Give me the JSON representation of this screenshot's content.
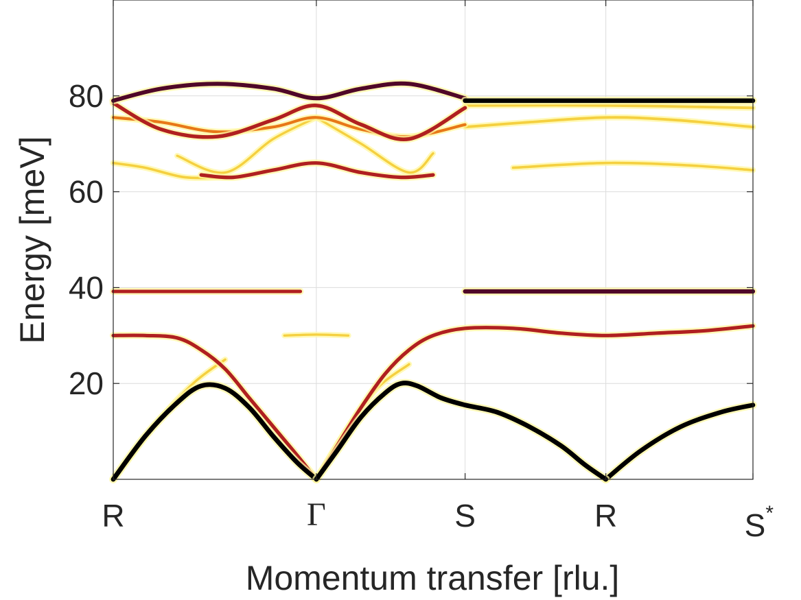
{
  "chart_data": {
    "type": "line",
    "xlabel": "Momentum transfer [rlu.]",
    "ylabel": "Energy [meV]",
    "xlim": [
      0,
      4
    ],
    "ylim": [
      0,
      100
    ],
    "x_ticks": [
      {
        "value": 0,
        "label": "R"
      },
      {
        "value": 1.27,
        "label": "Γ"
      },
      {
        "value": 2.2,
        "label": "S"
      },
      {
        "value": 3.08,
        "label": "R"
      },
      {
        "value": 4,
        "label": "S*"
      }
    ],
    "y_ticks": [
      20,
      40,
      60,
      80
    ],
    "grid": true,
    "colormap": [
      "#ffffb0",
      "#f5d040",
      "#e87818",
      "#b02020",
      "#500828",
      "#000000"
    ],
    "series": [
      {
        "id": "acoustic-1",
        "intensity": 0.95,
        "x": [
          0,
          0.2,
          0.4,
          0.55,
          0.7,
          0.85,
          1.0,
          1.15,
          1.27
        ],
        "y": [
          0,
          9,
          16,
          19.5,
          19,
          15,
          9,
          3.5,
          0
        ]
      },
      {
        "id": "acoustic-2",
        "intensity": 0.95,
        "x": [
          1.27,
          1.4,
          1.55,
          1.7,
          1.8,
          1.9,
          2.05,
          2.2,
          2.4,
          2.6,
          2.8,
          2.95,
          3.08
        ],
        "y": [
          0,
          6,
          13,
          18,
          20,
          19.5,
          17,
          15.5,
          14,
          11,
          7,
          3,
          0
        ]
      },
      {
        "id": "acoustic-3",
        "intensity": 0.9,
        "x": [
          3.08,
          3.3,
          3.55,
          3.8,
          4.0
        ],
        "y": [
          0,
          6,
          11,
          14,
          15.5
        ]
      },
      {
        "id": "optical-30",
        "intensity": 0.55,
        "x": [
          0,
          0.2,
          0.4,
          0.55,
          0.7,
          0.85,
          1.0,
          1.15,
          1.27
        ],
        "y": [
          30,
          30,
          29.5,
          27,
          23,
          17,
          11,
          5,
          0
        ]
      },
      {
        "id": "optical-30b",
        "intensity": 0.55,
        "x": [
          1.27,
          1.4,
          1.55,
          1.7,
          1.85,
          2.0,
          2.2,
          2.5,
          2.8,
          3.08,
          3.4,
          3.7,
          4.0
        ],
        "y": [
          0,
          7,
          15,
          22,
          27,
          30,
          31.5,
          31.5,
          30.5,
          30,
          30.5,
          31,
          32
        ]
      },
      {
        "id": "ghost-a",
        "intensity": 0.12,
        "x": [
          0,
          0.25,
          0.5,
          0.7
        ],
        "y": [
          0,
          11,
          20,
          25
        ]
      },
      {
        "id": "ghost-b",
        "intensity": 0.12,
        "x": [
          1.27,
          1.45,
          1.65,
          1.85
        ],
        "y": [
          0,
          10,
          19,
          24
        ]
      },
      {
        "id": "flat-39-left",
        "intensity": 0.5,
        "x": [
          0,
          0.4,
          0.8,
          1.17
        ],
        "y": [
          39.2,
          39.2,
          39.2,
          39.2
        ]
      },
      {
        "id": "flat-39-right",
        "intensity": 0.8,
        "x": [
          2.2,
          2.6,
          3.08,
          3.5,
          4.0
        ],
        "y": [
          39.2,
          39.2,
          39.2,
          39.2,
          39.2
        ]
      },
      {
        "id": "gamma-30",
        "intensity": 0.1,
        "x": [
          1.07,
          1.27,
          1.47
        ],
        "y": [
          30,
          30.2,
          30
        ]
      },
      {
        "id": "top-82",
        "intensity": 0.75,
        "x": [
          0,
          0.3,
          0.65,
          1.0,
          1.27,
          1.55,
          1.85,
          2.2
        ],
        "y": [
          79,
          81.5,
          82.5,
          81.5,
          79.5,
          81.5,
          82.5,
          79.5
        ]
      },
      {
        "id": "top-78",
        "intensity": 0.6,
        "x": [
          0,
          0.3,
          0.65,
          1.0,
          1.27,
          1.55,
          1.85,
          2.2
        ],
        "y": [
          78.5,
          73,
          71.5,
          75,
          78,
          74,
          71,
          77.5
        ]
      },
      {
        "id": "top-75",
        "intensity": 0.3,
        "x": [
          0,
          0.3,
          0.65,
          1.0,
          1.27,
          1.55,
          1.85,
          2.2
        ],
        "y": [
          75.5,
          74.5,
          72.5,
          73.5,
          75.5,
          73,
          71.5,
          74
        ]
      },
      {
        "id": "flat-79-right",
        "intensity": 0.9,
        "x": [
          2.2,
          3.08,
          4.0
        ],
        "y": [
          79,
          79,
          79
        ]
      },
      {
        "id": "flat-78-right",
        "intensity": 0.2,
        "x": [
          2.2,
          3.08,
          4.0
        ],
        "y": [
          78,
          78,
          77.5
        ]
      },
      {
        "id": "band-74-right",
        "intensity": 0.2,
        "x": [
          2.2,
          2.6,
          3.08,
          3.5,
          4.0
        ],
        "y": [
          73.5,
          74.5,
          75.5,
          75,
          73.5
        ]
      },
      {
        "id": "band-66",
        "intensity": 0.55,
        "x": [
          0.55,
          0.75,
          1.0,
          1.27,
          1.55,
          1.8,
          2.0
        ],
        "y": [
          63.5,
          63,
          64.5,
          66,
          64,
          63,
          63.5
        ]
      },
      {
        "id": "band-65-left",
        "intensity": 0.15,
        "x": [
          0,
          0.2,
          0.45,
          0.7
        ],
        "y": [
          66,
          65,
          63,
          63
        ]
      },
      {
        "id": "band-cross-a",
        "intensity": 0.1,
        "x": [
          0.4,
          0.7,
          1.0,
          1.27
        ],
        "y": [
          67.5,
          64,
          71,
          75.5
        ]
      },
      {
        "id": "band-cross-b",
        "intensity": 0.1,
        "x": [
          1.27,
          1.55,
          1.85,
          2.0
        ],
        "y": [
          75.5,
          70,
          64,
          68
        ]
      },
      {
        "id": "band-65-right",
        "intensity": 0.15,
        "x": [
          2.5,
          3.08,
          3.6,
          4.0
        ],
        "y": [
          65,
          66,
          65.5,
          64.5
        ]
      }
    ]
  }
}
